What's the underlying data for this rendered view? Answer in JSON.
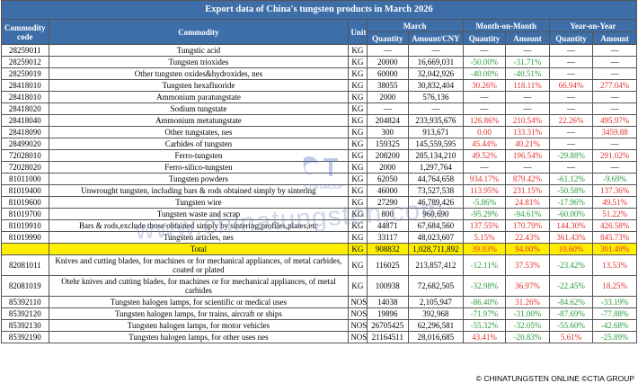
{
  "title": "Export data of China's tungsten products in March 2026",
  "headers": {
    "code": "Commodity code",
    "commodity": "Commodity",
    "unit": "Unit",
    "march": "March",
    "mom": "Month-on-Month",
    "yoy": "Year-on-Year",
    "quantity": "Quantity",
    "amount_cny": "Amount/CNY",
    "amount": "Amount"
  },
  "rows": [
    {
      "code": "28259011",
      "name": "Tungstic acid",
      "unit": "KG",
      "qty": "—",
      "amt": "—",
      "mom_q": "—",
      "mom_a": "—",
      "yoy_q": "—",
      "yoy_a": "—"
    },
    {
      "code": "28259012",
      "name": "Tungsten trioxides",
      "unit": "KG",
      "qty": "20000",
      "amt": "16,669,031",
      "mom_q": "-50.00%",
      "mom_a": "-31.71%",
      "yoy_q": "—",
      "yoy_a": "—"
    },
    {
      "code": "28259019",
      "name": "Other tungsten oxides&hydroxides, nes",
      "unit": "KG",
      "qty": "60000",
      "amt": "32,042,926",
      "mom_q": "-40.00%",
      "mom_a": "-40.51%",
      "yoy_q": "—",
      "yoy_a": "—"
    },
    {
      "code": "28418010",
      "name": "Tungsten hexafluoride",
      "unit": "KG",
      "qty": "38055",
      "amt": "30,832,404",
      "mom_q": "30.26%",
      "mom_a": "118.11%",
      "yoy_q": "66.94%",
      "yoy_a": "277.04%"
    },
    {
      "code": "28418010",
      "name": "Ammonium paratungstate",
      "unit": "KG",
      "qty": "2000",
      "amt": "576,136",
      "mom_q": "—",
      "mom_a": "—",
      "yoy_q": "—",
      "yoy_a": "—"
    },
    {
      "code": "28418020",
      "name": "Sodium tungstate",
      "unit": "KG",
      "qty": "—",
      "amt": "—",
      "mom_q": "—",
      "mom_a": "—",
      "yoy_q": "—",
      "yoy_a": "—"
    },
    {
      "code": "28418040",
      "name": "Ammonium metatungstate",
      "unit": "KG",
      "qty": "204824",
      "amt": "233,935,676",
      "mom_q": "126.86%",
      "mom_a": "210.54%",
      "yoy_q": "22.26%",
      "yoy_a": "495.97%"
    },
    {
      "code": "28418090",
      "name": "Other tungstates, nes",
      "unit": "KG",
      "qty": "300",
      "amt": "913,671",
      "mom_q": "0.00",
      "mom_a": "133.31%",
      "yoy_q": "—",
      "yoy_a": "3459.88"
    },
    {
      "code": "28499020",
      "name": "Carbides of tungsten",
      "unit": "KG",
      "qty": "159325",
      "amt": "145,559,595",
      "mom_q": "45.44%",
      "mom_a": "40.21%",
      "yoy_q": "—",
      "yoy_a": "—"
    },
    {
      "code": "72028010",
      "name": "Ferro-tungsten",
      "unit": "KG",
      "qty": "208200",
      "amt": "285,134,210",
      "mom_q": "49.52%",
      "mom_a": "196.54%",
      "yoy_q": "-29.88%",
      "yoy_a": "291.02%"
    },
    {
      "code": "72028020",
      "name": "Ferro-silico-tungsten",
      "unit": "KG",
      "qty": "2000",
      "amt": "1,297,764",
      "mom_q": "—",
      "mom_a": "—",
      "yoy_q": "—",
      "yoy_a": "—"
    },
    {
      "code": "81011000",
      "name": "Tungsten powders",
      "unit": "KG",
      "qty": "62050",
      "amt": "44,764,658",
      "mom_q": "934.17%",
      "mom_a": "879.42%",
      "yoy_q": "-61.12%",
      "yoy_a": "-9.69%"
    },
    {
      "code": "81019400",
      "name": "Unwrought tungsten, including bars & rods obtained simply by sintering",
      "unit": "KG",
      "qty": "46000",
      "amt": "73,527,538",
      "mom_q": "113.95%",
      "mom_a": "231.15%",
      "yoy_q": "-50.58%",
      "yoy_a": "137.36%"
    },
    {
      "code": "81019600",
      "name": "Tungsten wire",
      "unit": "KG",
      "qty": "27290",
      "amt": "46,789,426",
      "mom_q": "-5.86%",
      "mom_a": "24.81%",
      "yoy_q": "-17.96%",
      "yoy_a": "49.51%"
    },
    {
      "code": "81019700",
      "name": "Tungsten waste and scrap",
      "unit": "KG",
      "qty": "800",
      "amt": "960,690",
      "mom_q": "-95.29%",
      "mom_a": "-94.61%",
      "yoy_q": "-60.00%",
      "yoy_a": "51.22%"
    },
    {
      "code": "81019910",
      "name": "Bars & rods,exclude those obtained simply by sintering;profiles,plates,etc",
      "unit": "KG",
      "qty": "44871",
      "amt": "67,684,560",
      "mom_q": "137.55%",
      "mom_a": "170.79%",
      "yoy_q": "144.30%",
      "yoy_a": "426.58%"
    },
    {
      "code": "81019990",
      "name": "Tungsten articles, nes",
      "unit": "KG",
      "qty": "33117",
      "amt": "48,023,607",
      "mom_q": "5.15%",
      "mom_a": "22.43%",
      "yoy_q": "361.43%",
      "yoy_a": "845.73%"
    }
  ],
  "total": {
    "name": "Total",
    "unit": "KG",
    "qty": "908832",
    "amt": "1,028,711,892",
    "mom_q": "39.03%",
    "mom_a": "94.00%",
    "yoy_q": "10.60%",
    "yoy_a": "301.49%"
  },
  "rows2": [
    {
      "code": "82081011",
      "name": "Knives and cutting blades, for machines or for mechanical appliances, of metal carbides, coated or plated",
      "unit": "KG",
      "qty": "116025",
      "amt": "213,857,412",
      "mom_q": "-12.11%",
      "mom_a": "37.53%",
      "yoy_q": "-23.42%",
      "yoy_a": "13.53%",
      "tall": true
    },
    {
      "code": "82081019",
      "name": "Otehr knives and cutting blades, for machines or for mechanical appliances, of metal carbides",
      "unit": "KG",
      "qty": "100938",
      "amt": "72,682,505",
      "mom_q": "-32.98%",
      "mom_a": "36.97%",
      "yoy_q": "-22.45%",
      "yoy_a": "18.25%",
      "tall": true
    },
    {
      "code": "85392110",
      "name": "Tungsten halogen lamps, for scientific or medical uses",
      "unit": "NOS",
      "qty": "14038",
      "amt": "2,105,947",
      "mom_q": "-86.40%",
      "mom_a": "31.26%",
      "yoy_q": "-84.62%",
      "yoy_a": "-33.19%"
    },
    {
      "code": "85392120",
      "name": "Tungsten halogen lamps, for trains, aircraft or ships",
      "unit": "NOS",
      "qty": "19896",
      "amt": "392,968",
      "mom_q": "-71.97%",
      "mom_a": "-31.00%",
      "yoy_q": "-87.69%",
      "yoy_a": "-77.88%"
    },
    {
      "code": "85392130",
      "name": "Tungsten halogen lamps, for motor vehicles",
      "unit": "NOS",
      "qty": "26705425",
      "amt": "62,296,581",
      "mom_q": "-55.32%",
      "mom_a": "-32.05%",
      "yoy_q": "-55.60%",
      "yoy_a": "-42.68%"
    },
    {
      "code": "85392190",
      "name": "Tungsten halogen lamps, for other uses nes",
      "unit": "NOS",
      "qty": "21164511",
      "amt": "28,016,685",
      "mom_q": "43.41%",
      "mom_a": "-20.83%",
      "yoy_q": "5.61%",
      "yoy_a": "-25.89%"
    }
  ],
  "watermark": "www.chinatungsten.com",
  "logo_caption": "CTIA GROUP",
  "footer": "© CHINATUNGSTEN ONLINE  ©CTIA GROUP",
  "colors": {
    "header": "#3d6ea8",
    "total": "#ffee00",
    "positive": "#e0302c",
    "negative": "#2a9a3c"
  }
}
